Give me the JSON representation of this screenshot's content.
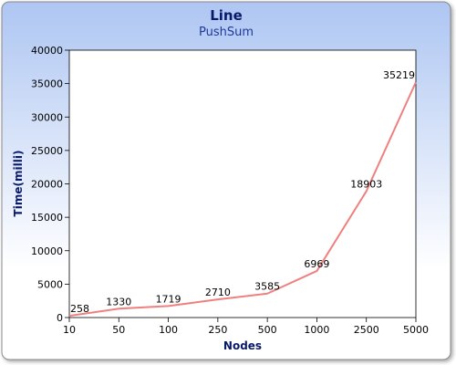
{
  "chart_data": {
    "type": "line",
    "title": "Line",
    "subtitle": "PushSum",
    "xlabel": "Nodes",
    "ylabel": "Time(milli)",
    "categories": [
      "10",
      "50",
      "100",
      "250",
      "500",
      "1000",
      "2500",
      "5000"
    ],
    "values": [
      258,
      1330,
      1719,
      2710,
      3585,
      6969,
      18903,
      35219
    ],
    "ylim": [
      0,
      40000
    ],
    "yticks": [
      0,
      5000,
      10000,
      15000,
      20000,
      25000,
      30000,
      35000,
      40000
    ],
    "grid": false,
    "legend": "none",
    "line_color": "#f08080",
    "title_color": "#0a1a6a",
    "background_top": "#aec6f2",
    "background_bottom": "#ffffff"
  }
}
